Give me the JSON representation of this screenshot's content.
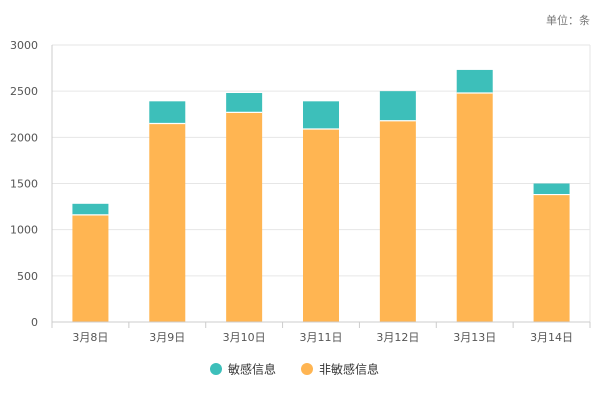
{
  "chart_data": {
    "type": "bar",
    "stacked": true,
    "unit_label": "单位：条",
    "categories": [
      "3月8日",
      "3月9日",
      "3月10日",
      "3月11日",
      "3月12日",
      "3月13日",
      "3月14日"
    ],
    "series": [
      {
        "name": "非敏感信息",
        "color": "#ffb552",
        "values": [
          1160,
          2150,
          2270,
          2090,
          2180,
          2480,
          1380
        ]
      },
      {
        "name": "敏感信息",
        "color": "#3dbfba",
        "values": [
          120,
          240,
          210,
          300,
          320,
          250,
          120
        ]
      }
    ],
    "ylim": [
      0,
      3000
    ],
    "yticks": [
      0,
      500,
      1000,
      1500,
      2000,
      2500,
      3000
    ],
    "grid": true,
    "legend": {
      "placement": "bottom-center",
      "entries": [
        {
          "name": "敏感信息",
          "color": "#3dbfba"
        },
        {
          "name": "非敏感信息",
          "color": "#ffb552"
        }
      ]
    }
  }
}
